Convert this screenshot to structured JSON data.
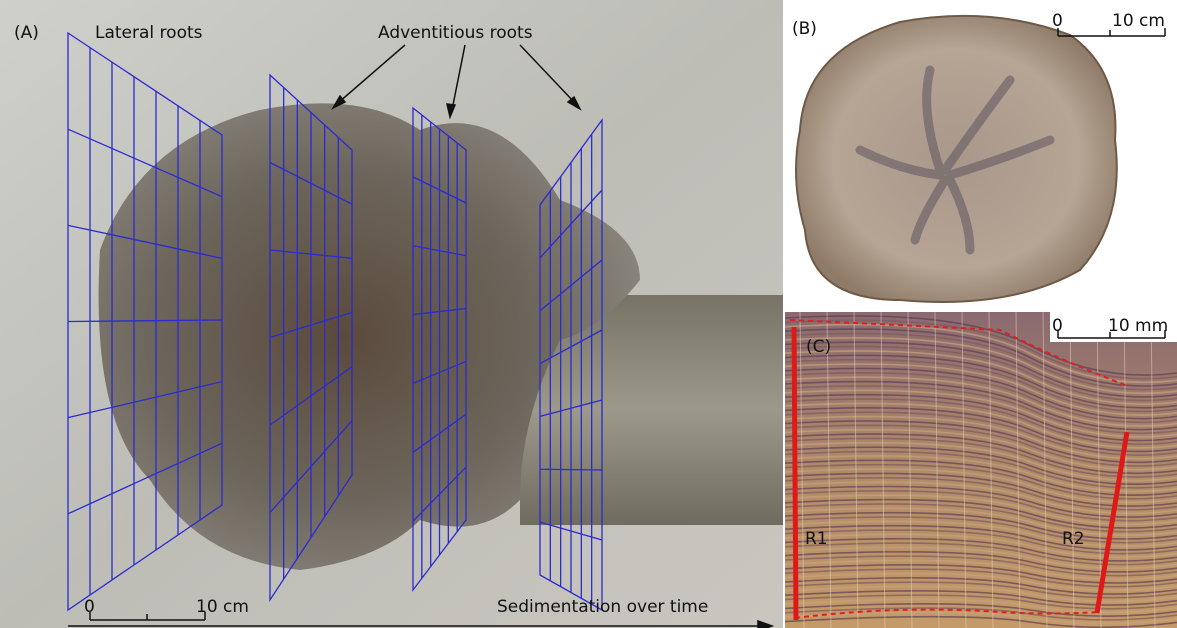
{
  "panels": [
    {
      "label": "(A)",
      "annotations": [
        "Lateral roots",
        "Adventitious roots"
      ],
      "scale_bar": {
        "start": "0",
        "end": "10 cm"
      },
      "axis_label": "Sedimentation over time"
    },
    {
      "label": "(B)",
      "scale_bar": {
        "start": "0",
        "end": "10 cm"
      }
    },
    {
      "label": "(C)",
      "scale_bar": {
        "start": "0",
        "end": "10 mm"
      },
      "radii": [
        "R1",
        "R2"
      ]
    }
  ]
}
